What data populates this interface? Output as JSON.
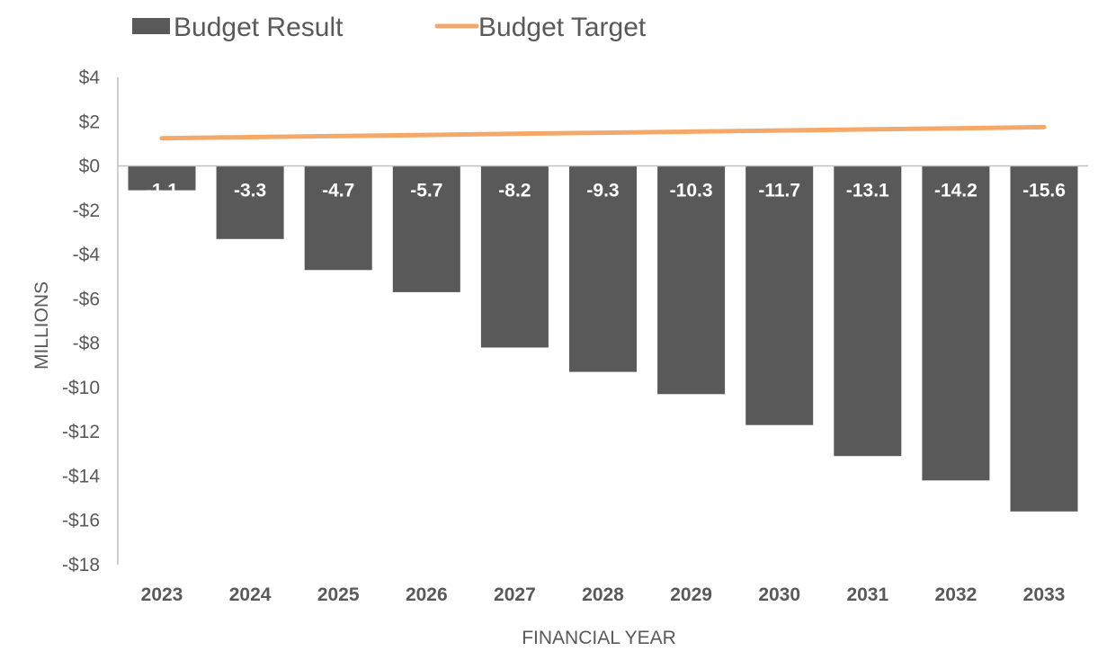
{
  "chart_data": {
    "type": "bar",
    "categories": [
      "2023",
      "2024",
      "2025",
      "2026",
      "2027",
      "2028",
      "2029",
      "2030",
      "2031",
      "2032",
      "2033"
    ],
    "series": [
      {
        "name": "Budget Result",
        "kind": "bar",
        "color": "#595959",
        "values": [
          -1.1,
          -3.3,
          -4.7,
          -5.7,
          -8.2,
          -9.3,
          -10.3,
          -11.7,
          -13.1,
          -14.2,
          -15.6
        ],
        "data_labels": [
          "-1.1",
          "-3.3",
          "-4.7",
          "-5.7",
          "-8.2",
          "-9.3",
          "-10.3",
          "-11.7",
          "-13.1",
          "-14.2",
          "-15.6"
        ]
      },
      {
        "name": "Budget Target",
        "kind": "line",
        "color": "#F4A96A",
        "values": [
          1.25,
          1.3,
          1.35,
          1.4,
          1.45,
          1.5,
          1.55,
          1.6,
          1.65,
          1.7,
          1.75
        ]
      }
    ],
    "xlabel": "FINANCIAL YEAR",
    "ylabel": "MILLIONS",
    "ylim": [
      -18,
      4
    ],
    "yticks": [
      4,
      2,
      0,
      -2,
      -4,
      -6,
      -8,
      -10,
      -12,
      -14,
      -16,
      -18
    ],
    "ytick_labels": [
      "$4",
      "$2",
      "$0",
      "-$2",
      "-$4",
      "-$6",
      "-$8",
      "-$10",
      "-$12",
      "-$14",
      "-$16",
      "-$18"
    ],
    "grid": false,
    "legend_position": "top-left"
  }
}
